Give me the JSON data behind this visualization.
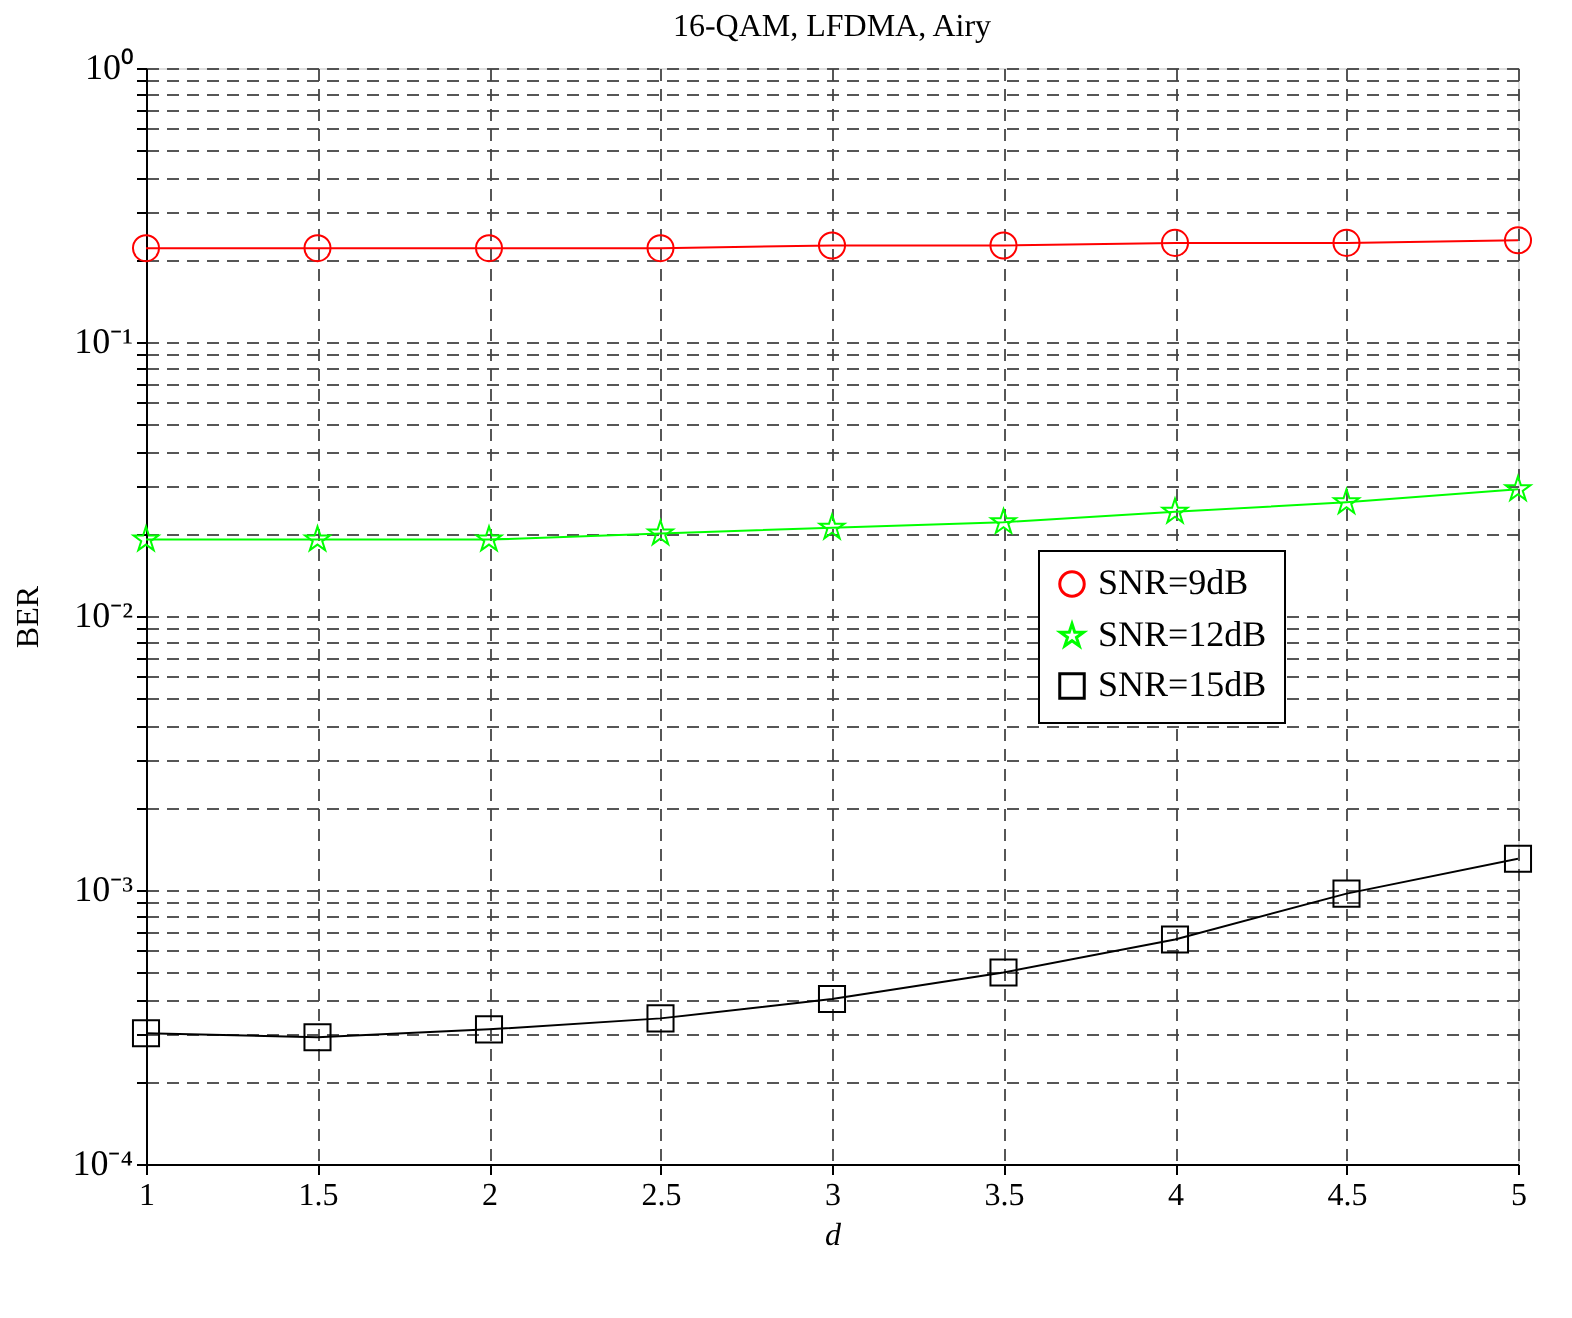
{
  "chart_data": {
    "type": "line",
    "title": "16-QAM, LFDMA, Airy",
    "xlabel": "d",
    "ylabel": "BER",
    "x": [
      1,
      1.5,
      2,
      2.5,
      3,
      3.5,
      4,
      4.5,
      5
    ],
    "series": [
      {
        "name": "SNR=9dB",
        "color": "#ff0000",
        "marker": "circle",
        "values": [
          0.22,
          0.22,
          0.22,
          0.22,
          0.225,
          0.225,
          0.23,
          0.23,
          0.235
        ]
      },
      {
        "name": "SNR=12dB",
        "color": "#00ff00",
        "marker": "star",
        "values": [
          0.019,
          0.019,
          0.019,
          0.02,
          0.021,
          0.022,
          0.024,
          0.026,
          0.029
        ]
      },
      {
        "name": "SNR=15dB",
        "color": "#000000",
        "marker": "square",
        "values": [
          0.0003,
          0.00029,
          0.00031,
          0.00034,
          0.0004,
          0.0005,
          0.00066,
          0.00097,
          0.0013
        ]
      }
    ],
    "log": "y",
    "xlim": [
      1,
      5
    ],
    "xticks": [
      1,
      1.5,
      2,
      2.5,
      3,
      3.5,
      4,
      4.5,
      5
    ],
    "ylim": [
      0.0001,
      1
    ],
    "yticks": [
      {
        "value": 0.0001,
        "label": "10⁻⁴"
      },
      {
        "value": 0.0002,
        "label": null
      },
      {
        "value": 0.0003,
        "label": null
      },
      {
        "value": 0.0004,
        "label": null
      },
      {
        "value": 0.0005,
        "label": null
      },
      {
        "value": 0.0006,
        "label": null
      },
      {
        "value": 0.0007,
        "label": null
      },
      {
        "value": 0.0008,
        "label": null
      },
      {
        "value": 0.0009,
        "label": null
      },
      {
        "value": 0.001,
        "label": "10⁻³"
      },
      {
        "value": 0.002,
        "label": null
      },
      {
        "value": 0.003,
        "label": null
      },
      {
        "value": 0.004,
        "label": null
      },
      {
        "value": 0.005,
        "label": null
      },
      {
        "value": 0.006,
        "label": null
      },
      {
        "value": 0.007,
        "label": null
      },
      {
        "value": 0.008,
        "label": null
      },
      {
        "value": 0.009,
        "label": null
      },
      {
        "value": 0.01,
        "label": "10⁻²"
      },
      {
        "value": 0.02,
        "label": null
      },
      {
        "value": 0.03,
        "label": null
      },
      {
        "value": 0.04,
        "label": null
      },
      {
        "value": 0.05,
        "label": null
      },
      {
        "value": 0.06,
        "label": null
      },
      {
        "value": 0.07,
        "label": null
      },
      {
        "value": 0.08,
        "label": null
      },
      {
        "value": 0.09,
        "label": null
      },
      {
        "value": 0.1,
        "label": "10⁻¹"
      },
      {
        "value": 0.2,
        "label": null
      },
      {
        "value": 0.3,
        "label": null
      },
      {
        "value": 0.4,
        "label": null
      },
      {
        "value": 0.5,
        "label": null
      },
      {
        "value": 0.6,
        "label": null
      },
      {
        "value": 0.7,
        "label": null
      },
      {
        "value": 0.8,
        "label": null
      },
      {
        "value": 0.9,
        "label": null
      },
      {
        "value": 1,
        "label": "10⁰"
      }
    ],
    "grid": true,
    "legend": "right"
  }
}
